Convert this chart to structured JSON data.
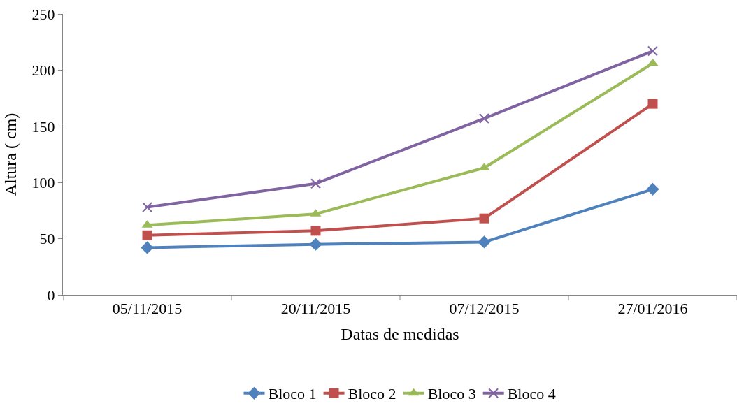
{
  "chart_data": {
    "type": "line",
    "xlabel": "Datas de medidas",
    "ylabel": "Altura ( cm)",
    "categories": [
      "05/11/2015",
      "20/11/2015",
      "07/12/2015",
      "27/01/2016"
    ],
    "ylim": [
      0,
      250
    ],
    "yticks": [
      0,
      50,
      100,
      150,
      200,
      250
    ],
    "legend": "bottom",
    "line_style": "solid",
    "series": [
      {
        "name": "Bloco 1",
        "color": "#4f81bd",
        "marker": "diamond",
        "values": [
          42,
          45,
          47,
          94
        ]
      },
      {
        "name": "Bloco 2",
        "color": "#c0504d",
        "marker": "square",
        "values": [
          53,
          57,
          68,
          170
        ]
      },
      {
        "name": "Bloco 3",
        "color": "#9bbb59",
        "marker": "triangle",
        "values": [
          62,
          72,
          113,
          206
        ]
      },
      {
        "name": "Bloco 4",
        "color": "#8064a2",
        "marker": "cross",
        "values": [
          78,
          99,
          157,
          217
        ]
      }
    ]
  }
}
